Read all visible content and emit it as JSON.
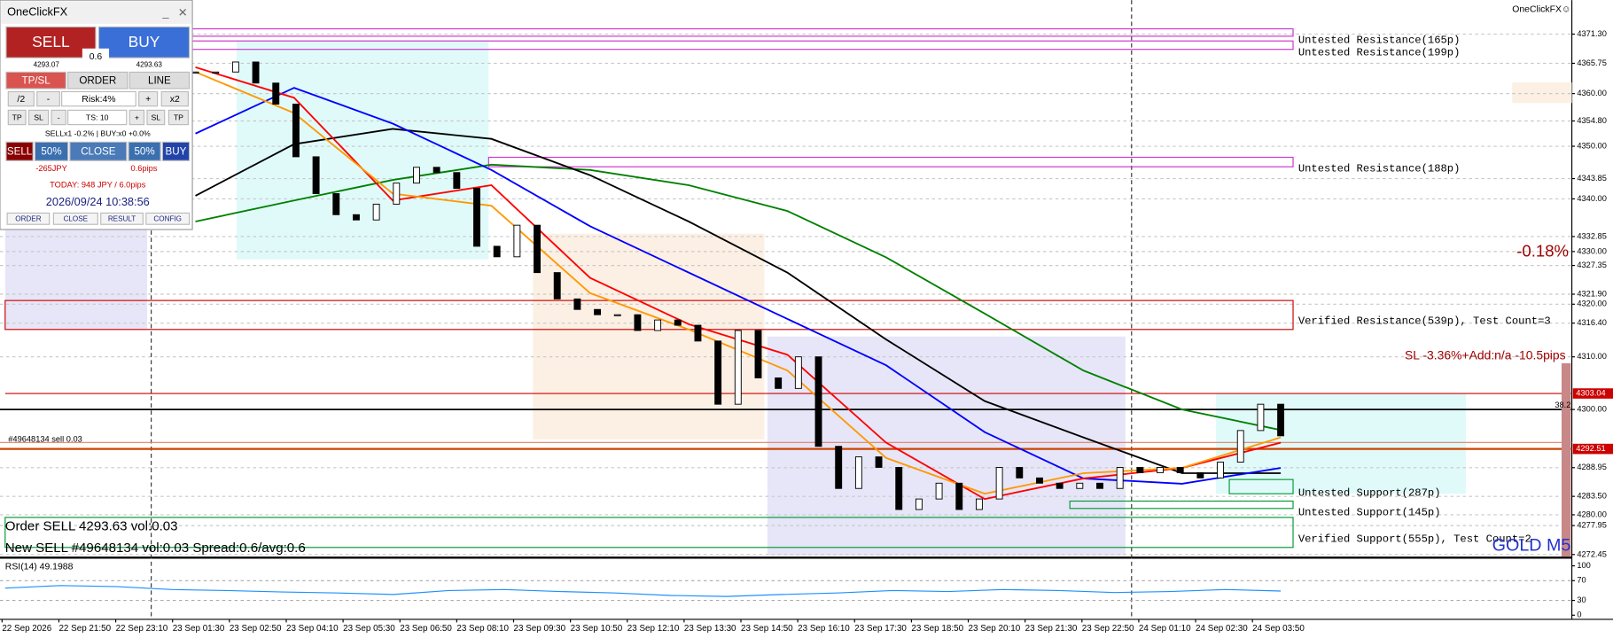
{
  "panel": {
    "title": "OneClickFX",
    "sell": "SELL",
    "buy": "BUY",
    "spread": "0.6",
    "bid": "4293.07",
    "ask": "4293.63",
    "tabs": [
      "TP/SL",
      "ORDER",
      "LINE"
    ],
    "row1": [
      "/2",
      "-",
      "Risk:4%",
      "+",
      "x2"
    ],
    "row2": [
      "TP",
      "SL",
      "-",
      "TS: 10",
      "+",
      "SL",
      "TP"
    ],
    "position": "SELLx1 -0.2% | BUY:x0 +0.0%",
    "row3": [
      "SELL",
      "50%",
      "CLOSE",
      "50%",
      "BUY"
    ],
    "pl": "-265JPY",
    "pips": "0.6pips",
    "today": "TODAY: 948 JPY / 6.0pips",
    "time": "2026/09/24 10:38:56",
    "footer": [
      "ORDER",
      "CLOSE",
      "RESULT",
      "CONFIG"
    ]
  },
  "chart": {
    "brand": "OneClickFX☺",
    "symbol": "GOLD M5",
    "change": "-0.18%",
    "sl_info": "SL -3.36%+Add:n/a -10.5pips",
    "order_tag": "#49648134 sell 0.03",
    "log": [
      "Order SELL 4293.63 vol:0.03",
      "New SELL #49648134 vol:0.03 Spread:0.6/avg:0.6"
    ],
    "fib": "38.2",
    "zones": [
      {
        "label": "Untested Resistance(165p)",
        "top": 4372.3,
        "bottom": 4370.9,
        "kind": "untested-resistance"
      },
      {
        "label": "Untested Resistance(199p)",
        "top": 4370.0,
        "bottom": 4368.4,
        "kind": "untested-resistance"
      },
      {
        "label": "Untested Resistance(188p)",
        "top": 4347.9,
        "bottom": 4346.1,
        "kind": "untested-resistance"
      },
      {
        "label": "Verified Resistance(539p), Test Count=3",
        "top": 4320.7,
        "bottom": 4315.2,
        "kind": "verified-resistance"
      },
      {
        "label": "Untested Support(287p)",
        "top": 4286.7,
        "bottom": 4284.0,
        "kind": "untested-support"
      },
      {
        "label": "Untested Support(145p)",
        "top": 4282.6,
        "bottom": 4281.2,
        "kind": "untested-support"
      },
      {
        "label": "Verified Support(555p), Test Count=2",
        "top": 4279.5,
        "bottom": 4273.8,
        "kind": "verified-support"
      }
    ],
    "order_price": {
      "value": 4303.04,
      "label": "4303.04"
    },
    "current_price": {
      "value": 4292.51,
      "label": "4292.51"
    },
    "closes": [
      4364.1,
      4364.1,
      4366.0,
      4362.0,
      4358.0,
      4348.0,
      4341.0,
      4337.0,
      4336.0,
      4339.0,
      4343.0,
      4346.0,
      4345.0,
      4342.0,
      4331.0,
      4329.0,
      4335.0,
      4326.0,
      4321.0,
      4319.0,
      4318.0,
      4318.0,
      4315.0,
      4317.0,
      4316.0,
      4313.0,
      4301.0,
      4315.0,
      4306.0,
      4304.0,
      4310.0,
      4293.0,
      4285.0,
      4291.0,
      4289.0,
      4281.0,
      4283.0,
      4286.0,
      4281.0,
      4283.0,
      4289.0,
      4287.0,
      4286.0,
      4285.0,
      4286.0,
      4285.0,
      4289.0,
      4288.0,
      4289.0,
      4288.0,
      4287.0,
      4290.0,
      4296.0,
      4301.0,
      4295.0
    ],
    "averages": [
      {
        "color": "#008000",
        "values": [
          4335.7,
          4339.7,
          4343.6,
          4346.5,
          4345.5,
          4342.6,
          4337.7,
          4328.9,
          4318.2,
          4307.4,
          4300.0,
          4296.1
        ]
      },
      {
        "color": "#000000",
        "values": [
          4340.6,
          4350.4,
          4353.3,
          4351.4,
          4344.5,
          4335.7,
          4326.0,
          4313.3,
          4301.6,
          4294.7,
          4287.9,
          4287.9
        ]
      },
      {
        "color": "#0000ff",
        "values": [
          4352.4,
          4361.1,
          4354.3,
          4345.5,
          4334.8,
          4326.0,
          4317.2,
          4308.4,
          4295.7,
          4286.9,
          4285.9,
          4288.9
        ]
      },
      {
        "color": "#ff0000",
        "values": [
          4365.0,
          4359.2,
          4339.7,
          4342.6,
          4325.0,
          4316.2,
          4310.4,
          4293.7,
          4283.0,
          4286.9,
          4288.9,
          4293.7
        ]
      },
      {
        "color": "#ff9900",
        "values": [
          4364.1,
          4356.3,
          4341.0,
          4338.7,
          4322.1,
          4315.2,
          4307.4,
          4290.8,
          4284.0,
          4287.9,
          4288.9,
          4294.7
        ]
      }
    ],
    "price_ticks": [
      {
        "value": 4371.3,
        "label": "4371.30"
      },
      {
        "value": 4365.75,
        "label": "4365.75"
      },
      {
        "value": 4360,
        "label": "4360.00"
      },
      {
        "value": 4354.8,
        "label": "4354.80"
      },
      {
        "value": 4350,
        "label": "4350.00"
      },
      {
        "value": 4343.85,
        "label": "4343.85"
      },
      {
        "value": 4340,
        "label": "4340.00"
      },
      {
        "value": 4332.85,
        "label": "4332.85"
      },
      {
        "value": 4330,
        "label": "4330.00"
      },
      {
        "value": 4327.35,
        "label": "4327.35"
      },
      {
        "value": 4321.9,
        "label": "4321.90"
      },
      {
        "value": 4320,
        "label": "4320.00"
      },
      {
        "value": 4316.4,
        "label": "4316.40"
      },
      {
        "value": 4310,
        "label": "4310.00"
      },
      {
        "value": 4300,
        "label": "4300.00"
      },
      {
        "value": 4288.95,
        "label": "4288.95"
      },
      {
        "value": 4283.5,
        "label": "4283.50"
      },
      {
        "value": 4280,
        "label": "4280.00"
      },
      {
        "value": 4277.95,
        "label": "4277.95"
      },
      {
        "value": 4272.45,
        "label": "4272.45"
      }
    ],
    "time_labels": [
      "22 Sep 2026",
      "22 Sep 21:50",
      "22 Sep 23:10",
      "23 Sep 01:30",
      "23 Sep 02:50",
      "23 Sep 04:10",
      "23 Sep 05:30",
      "23 Sep 06:50",
      "23 Sep 08:10",
      "23 Sep 09:30",
      "23 Sep 10:50",
      "23 Sep 12:10",
      "23 Sep 13:30",
      "23 Sep 14:50",
      "23 Sep 16:10",
      "23 Sep 17:30",
      "23 Sep 18:50",
      "23 Sep 20:10",
      "23 Sep 21:30",
      "23 Sep 22:50",
      "24 Sep 01:10",
      "24 Sep 02:30",
      "24 Sep 03:50"
    ],
    "rsi": {
      "label": "RSI(14) 49.1988",
      "ticks": [
        100,
        70,
        30,
        0
      ],
      "values": [
        55,
        60,
        58,
        52,
        50,
        47,
        45,
        42,
        50,
        52,
        48,
        45,
        40,
        38,
        42,
        45,
        50,
        48,
        52,
        50,
        46,
        48,
        52,
        49
      ]
    }
  }
}
